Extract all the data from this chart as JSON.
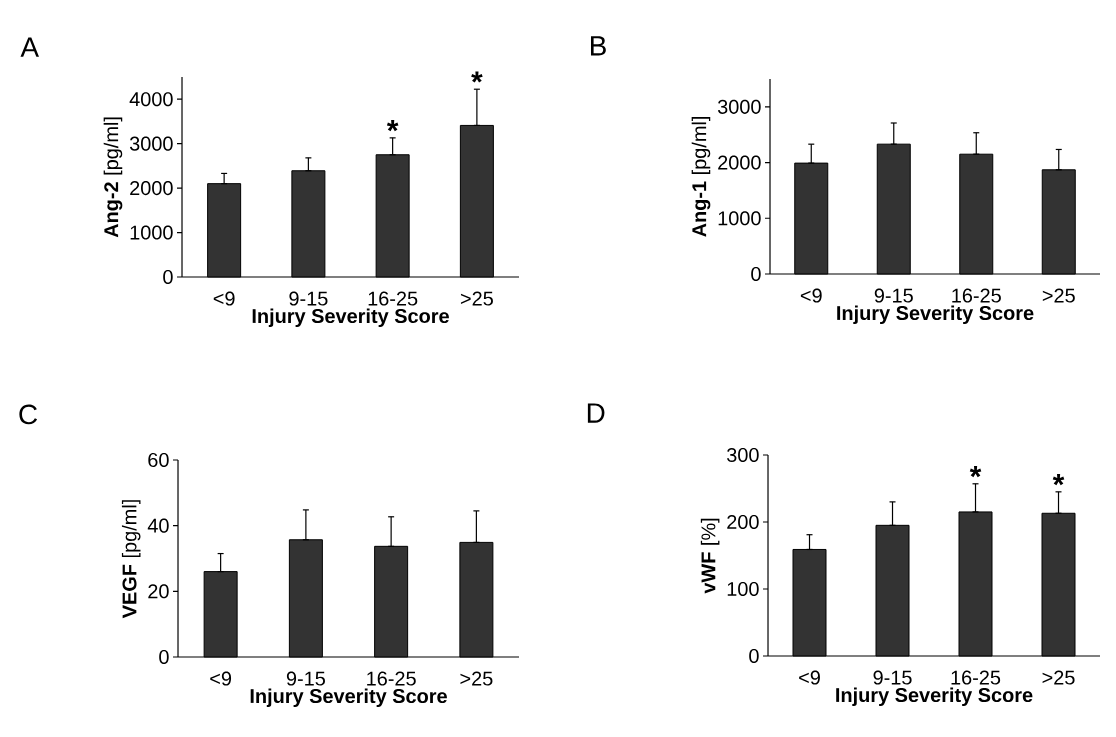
{
  "chart_data": [
    {
      "type": "bar",
      "title": "A",
      "xlabel": "Injury Severity Score",
      "ylabel": "**Ang-2** [pg/ml]",
      "categories": [
        "<9",
        "9-15",
        "16-25",
        ">25"
      ],
      "values": [
        2100,
        2390,
        2750,
        3410
      ],
      "errors": [
        [
          2100,
          2330
        ],
        [
          2390,
          2680
        ],
        [
          2750,
          3130
        ],
        [
          3410,
          4225
        ]
      ],
      "color": "#333333",
      "ylim": [
        0,
        4500
      ],
      "yticks": [
        0,
        1000,
        2000,
        3000,
        4000
      ],
      "annotations": [
        "*",
        "*"
      ]
    },
    {
      "type": "bar",
      "title": "B",
      "xlabel": "Injury Severity Score",
      "ylabel": "**Ang-1** [pg/ml]",
      "categories": [
        "<9",
        "9-15",
        "16-25",
        ">25"
      ],
      "values": [
        1990,
        2330,
        2150,
        1870
      ],
      "errors": [
        [
          1990,
          2330
        ],
        [
          2330,
          2710
        ],
        [
          2150,
          2535
        ],
        [
          1870,
          2235
        ]
      ],
      "color": "#333333",
      "ylim": [
        0,
        3500
      ],
      "yticks": [
        0,
        1000,
        2000,
        3000
      ]
    },
    {
      "type": "bar",
      "title": "C",
      "xlabel": "Injury Severity Score",
      "ylabel": "**VEGF** [pg/ml]",
      "categories": [
        "<9",
        "9-15",
        "16-25",
        ">25"
      ],
      "values": [
        26.0,
        35.7,
        33.7,
        34.9
      ],
      "errors": [
        [
          26.0,
          31.5
        ],
        [
          35.7,
          44.8
        ],
        [
          33.7,
          42.7
        ],
        [
          34.9,
          44.5
        ]
      ],
      "color": "#333333",
      "ylim": [
        0,
        60
      ],
      "yticks": [
        0,
        20,
        40,
        60
      ]
    },
    {
      "type": "bar",
      "title": "D",
      "xlabel": "Injury Severity Score",
      "ylabel": "**vWF** [%]",
      "categories": [
        "<9",
        "9-15",
        "16-25",
        ">25"
      ],
      "values": [
        159,
        195,
        215,
        213
      ],
      "errors": [
        [
          159,
          181
        ],
        [
          195,
          230
        ],
        [
          215,
          257
        ],
        [
          213,
          245
        ]
      ],
      "color": "#333333",
      "ylim": [
        0,
        300
      ],
      "yticks": [
        0,
        100,
        200,
        300
      ],
      "annotations": [
        "*",
        "*"
      ]
    }
  ]
}
